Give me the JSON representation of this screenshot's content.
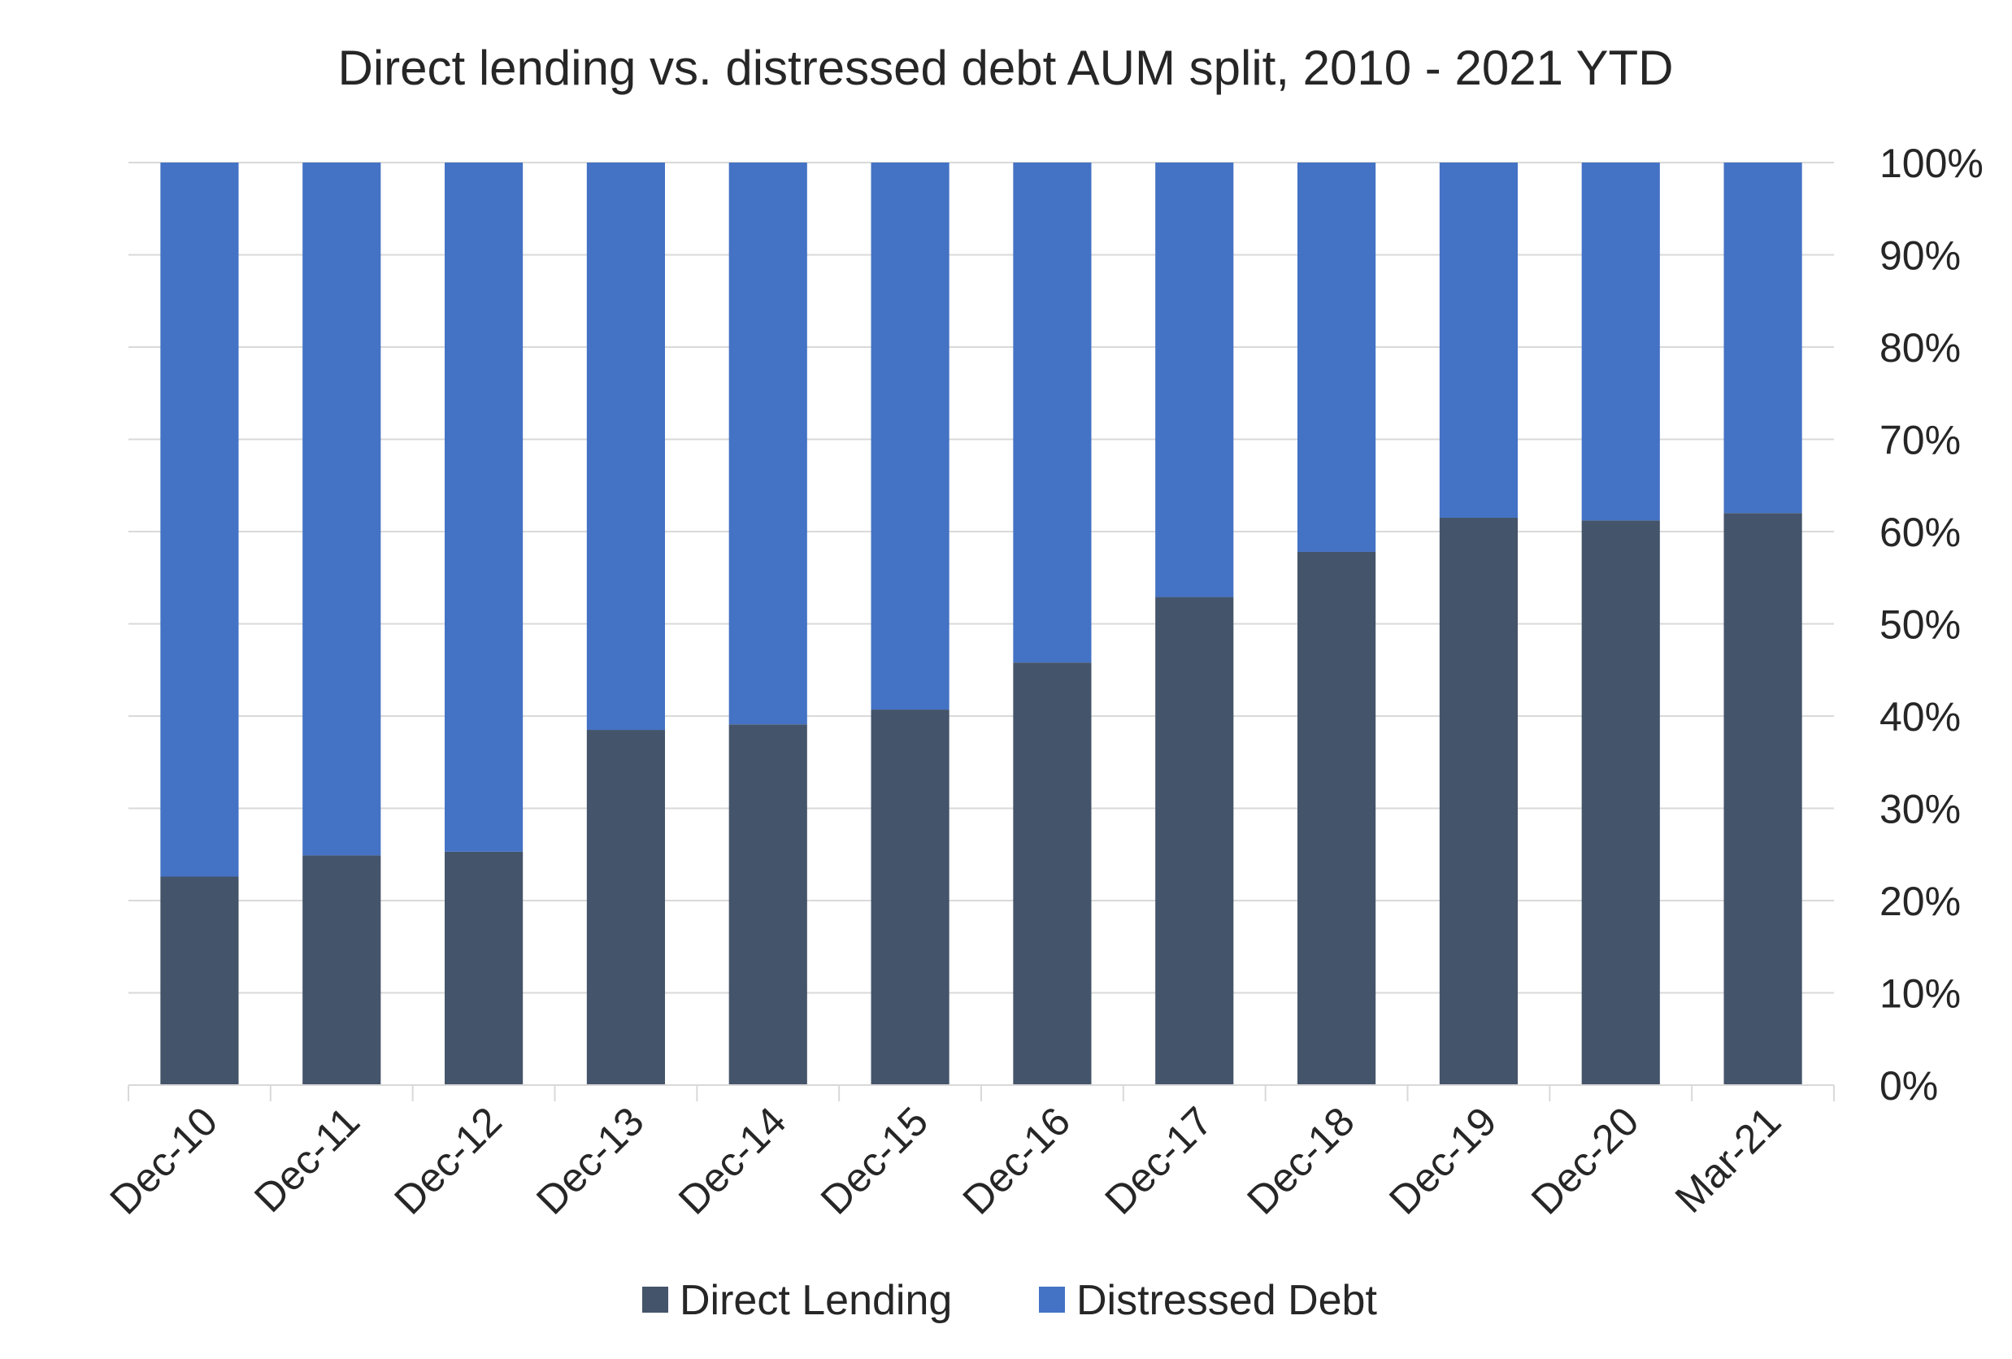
{
  "chart_data": {
    "type": "bar",
    "stacked": true,
    "title": "Direct lending vs. distressed debt AUM split, 2010 - 2021 YTD",
    "xlabel": "",
    "ylabel": "",
    "categories": [
      "Dec-10",
      "Dec-11",
      "Dec-12",
      "Dec-13",
      "Dec-14",
      "Dec-15",
      "Dec-16",
      "Dec-17",
      "Dec-18",
      "Dec-19",
      "Dec-20",
      "Mar-21"
    ],
    "series": [
      {
        "name": "Direct Lending",
        "color": "#44546A",
        "values": [
          22.6,
          24.9,
          25.3,
          38.5,
          39.1,
          40.7,
          45.8,
          52.9,
          57.8,
          61.5,
          61.2,
          62.0
        ]
      },
      {
        "name": "Distressed Debt",
        "color": "#4472C4",
        "values": [
          77.4,
          75.1,
          74.7,
          61.5,
          60.9,
          59.3,
          54.2,
          47.1,
          42.2,
          38.5,
          38.8,
          38.0
        ]
      }
    ],
    "ylim": [
      0,
      100
    ],
    "y_ticks": [
      "0%",
      "10%",
      "20%",
      "30%",
      "40%",
      "50%",
      "60%",
      "70%",
      "80%",
      "90%",
      "100%"
    ],
    "y_axis_position": "right",
    "x_tick_rotation": "45-degrees",
    "grid": true,
    "gridline_color": "#D9D9D9",
    "legend_position": "bottom"
  }
}
